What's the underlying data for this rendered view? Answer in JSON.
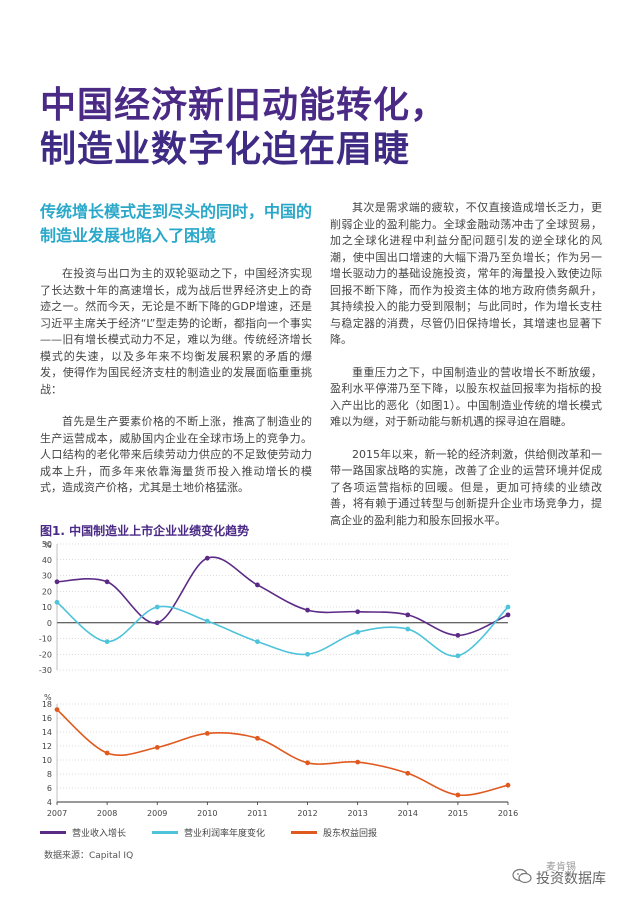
{
  "title": {
    "line1": "中国经济新旧动能转化，",
    "line2": "制造业数字化迫在眉睫"
  },
  "left_column": {
    "subheading": "传统增长模式走到尽头的同时，中国的制造业发展也陷入了困境",
    "para1": "在投资与出口为主的双轮驱动之下，中国经济实现了长达数十年的高速增长，成为战后世界经济史上的奇迹之一。然而今天，无论是不断下降的GDP增速，还是习近平主席关于经济“L”型走势的论断，都指向一个事实——旧有增长模式动力不足，难以为继。传统经济增长模式的失速，以及多年来不均衡发展积累的矛盾的爆发，使得作为国民经济支柱的制造业的发展面临重重挑战：",
    "para2": "首先是生产要素价格的不断上涨，推高了制造业的生产运营成本，威胁国内企业在全球市场上的竞争力。人口结构的老化带来后续劳动力供应的不足致使劳动力成本上升，而多年来依靠海量货币投入推动增长的模式，造成资产价格，尤其是土地价格猛涨。"
  },
  "right_column": {
    "para1": "其次是需求端的疲软，不仅直接造成增长乏力，更削弱企业的盈利能力。全球金融动荡冲击了全球贸易，加之全球化进程中利益分配问题引发的逆全球化的风潮，使中国出口增速的大幅下滑乃至负增长；作为另一增长驱动力的基础设施投资，常年的海量投入致使边际回报不断下降，而作为投资主体的地方政府债务飙升，其持续投入的能力受到限制；与此同时，作为增长支柱与稳定器的消费，尽管仍旧保持增长，其增速也显著下降。",
    "para2": "重重压力之下，中国制造业的营收增长不断放缓，盈利水平停滞乃至下降，以股东权益回报率为指标的投入产出比的恶化（如图1）。中国制造业传统的增长模式难以为继，对于新动能与新机遇的探寻迫在眉睫。",
    "para3": "2015年以来，新一轮的经济刺激，供给侧改革和一带一路国家战略的实施，改善了企业的运营环境并促成了各项运营指标的回暖。但是，更加可持续的业绩改善，将有赖于通过转型与创新提升企业市场竞争力，提高企业的盈利能力和股东回报水平。"
  },
  "figure": {
    "title": "图1. 中国制造业上市企业业绩变化趋势",
    "source": "数据来源：Capital IQ"
  },
  "chart_data": [
    {
      "type": "line",
      "x": [
        "2007",
        "2008",
        "2009",
        "2010",
        "2011",
        "2012",
        "2013",
        "2014",
        "2015",
        "2016"
      ],
      "ylabel": "%",
      "ylim": [
        -30,
        50
      ],
      "yticks": [
        "50",
        "40",
        "30",
        "20",
        "10",
        "0",
        "-10",
        "-20",
        "-30"
      ],
      "series": [
        {
          "name": "营业收入增长",
          "color": "#5b2a86",
          "values": [
            26,
            26,
            0,
            41,
            24,
            8,
            7,
            5,
            -8,
            5
          ]
        },
        {
          "name": "营业利润率年度变化",
          "color": "#4ec3d9",
          "values": [
            13,
            -12,
            10,
            1,
            -12,
            -20,
            -6,
            -4,
            -21,
            10
          ]
        }
      ]
    },
    {
      "type": "line",
      "x": [
        "2007",
        "2008",
        "2009",
        "2010",
        "2011",
        "2012",
        "2013",
        "2014",
        "2015",
        "2016"
      ],
      "ylabel": "%",
      "ylim": [
        4,
        18
      ],
      "yticks": [
        "18",
        "16",
        "14",
        "12",
        "10",
        "8",
        "6",
        "4"
      ],
      "series": [
        {
          "name": "股东权益回报",
          "color": "#e05a1f",
          "values": [
            17.2,
            11.0,
            11.8,
            13.8,
            13.1,
            9.6,
            9.7,
            8.1,
            5.0,
            6.4
          ]
        }
      ]
    }
  ],
  "watermark": {
    "label": "投资数据库",
    "mark": "麦肯锡"
  }
}
